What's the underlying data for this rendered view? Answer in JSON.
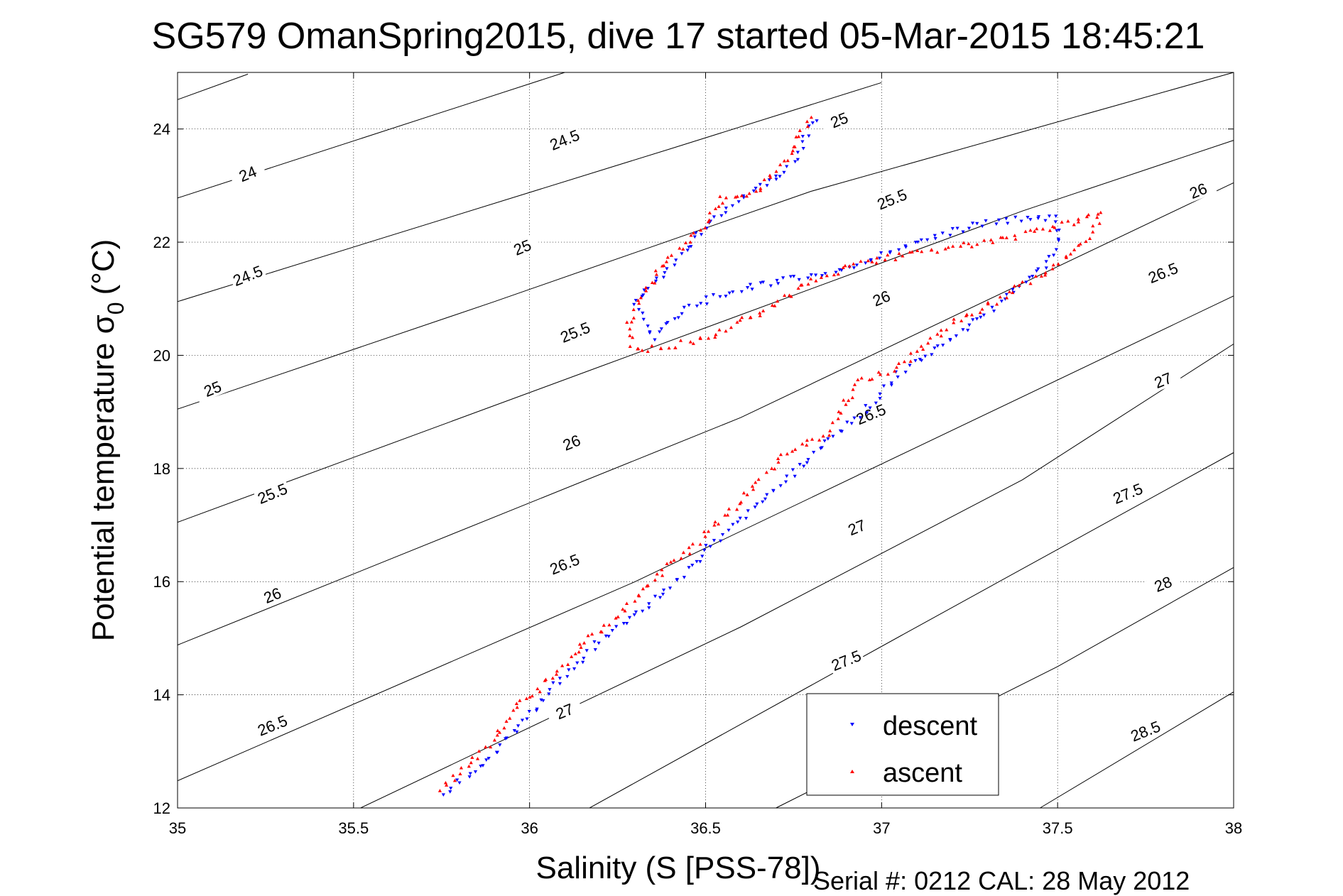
{
  "chart_data": {
    "type": "scatter",
    "title": "SG579 OmanSpring2015, dive 17 started 05-Mar-2015 18:45:21",
    "xlabel": "Salinity (S [PSS-78])",
    "ylabel_main": "Potential temperature σ",
    "ylabel_sub": "0",
    "ylabel_unit": "(°C)",
    "footer": "Serial #: 0212  CAL: 28 May 2012",
    "xlim": [
      35,
      38
    ],
    "ylim": [
      12,
      25
    ],
    "xticks": [
      {
        "v": 35,
        "label": "35"
      },
      {
        "v": 35.5,
        "label": "35.5"
      },
      {
        "v": 36,
        "label": "36"
      },
      {
        "v": 36.5,
        "label": "36.5"
      },
      {
        "v": 37,
        "label": "37"
      },
      {
        "v": 37.5,
        "label": "37.5"
      },
      {
        "v": 38,
        "label": "38"
      }
    ],
    "yticks": [
      {
        "v": 12,
        "label": "12"
      },
      {
        "v": 14,
        "label": "14"
      },
      {
        "v": 16,
        "label": "16"
      },
      {
        "v": 18,
        "label": "18"
      },
      {
        "v": 20,
        "label": "20"
      },
      {
        "v": 22,
        "label": "22"
      },
      {
        "v": 24,
        "label": "24"
      }
    ],
    "grid": true,
    "legend_position": "bottom-right",
    "contours": [
      {
        "points": [
          [
            35,
            24.52
          ],
          [
            35.2,
            24.97
          ]
        ],
        "labels": []
      },
      {
        "points": [
          [
            35,
            22.78
          ],
          [
            36.1,
            25.0
          ]
        ],
        "labels": [
          {
            "x": 35.2,
            "y": 23.2,
            "text": "24"
          }
        ]
      },
      {
        "points": [
          [
            35,
            20.95
          ],
          [
            36.4,
            23.65
          ],
          [
            37.0,
            24.82
          ]
        ],
        "labels": [
          {
            "x": 35.2,
            "y": 21.4,
            "text": "24.5"
          },
          {
            "x": 36.1,
            "y": 23.8,
            "text": "24.5"
          }
        ]
      },
      {
        "points": [
          [
            35,
            19.05
          ],
          [
            35.9,
            20.95
          ],
          [
            36.8,
            22.9
          ],
          [
            38,
            25.0
          ]
        ],
        "labels": [
          {
            "x": 35.1,
            "y": 19.4,
            "text": "25"
          },
          {
            "x": 35.98,
            "y": 21.9,
            "text": "25"
          },
          {
            "x": 36.88,
            "y": 24.15,
            "text": "25"
          }
        ]
      },
      {
        "points": [
          [
            35,
            17.05
          ],
          [
            36.2,
            19.8
          ],
          [
            37.4,
            22.55
          ],
          [
            38,
            23.8
          ]
        ],
        "labels": [
          {
            "x": 35.27,
            "y": 17.55,
            "text": "25.5"
          },
          {
            "x": 36.13,
            "y": 20.4,
            "text": "25.5"
          },
          {
            "x": 37.03,
            "y": 22.75,
            "text": "25.5"
          }
        ]
      },
      {
        "points": [
          [
            35,
            14.88
          ],
          [
            36.6,
            18.9
          ],
          [
            38,
            23.05
          ]
        ],
        "labels": [
          {
            "x": 35.27,
            "y": 15.75,
            "text": "26"
          },
          {
            "x": 36.12,
            "y": 18.45,
            "text": "26"
          },
          {
            "x": 37.0,
            "y": 21.0,
            "text": "26"
          },
          {
            "x": 37.9,
            "y": 22.9,
            "text": "26"
          }
        ]
      },
      {
        "points": [
          [
            35,
            12.48
          ],
          [
            36.3,
            16.0
          ],
          [
            38,
            21.05
          ]
        ],
        "labels": [
          {
            "x": 35.27,
            "y": 13.45,
            "text": "26.5"
          },
          {
            "x": 36.1,
            "y": 16.3,
            "text": "26.5"
          },
          {
            "x": 36.97,
            "y": 18.95,
            "text": "26.5"
          },
          {
            "x": 37.8,
            "y": 21.45,
            "text": "26.5"
          }
        ]
      },
      {
        "points": [
          [
            35.52,
            12.0
          ],
          [
            36.6,
            15.2
          ],
          [
            37.4,
            17.8
          ],
          [
            38,
            20.2
          ]
        ],
        "labels": [
          {
            "x": 36.1,
            "y": 13.7,
            "text": "27"
          },
          {
            "x": 36.93,
            "y": 16.95,
            "text": "27"
          },
          {
            "x": 37.8,
            "y": 19.55,
            "text": "27"
          }
        ]
      },
      {
        "points": [
          [
            36.17,
            12.0
          ],
          [
            37.1,
            15.2
          ],
          [
            38,
            18.28
          ]
        ],
        "labels": [
          {
            "x": 36.9,
            "y": 14.6,
            "text": "27.5"
          },
          {
            "x": 37.7,
            "y": 17.55,
            "text": "27.5"
          }
        ]
      },
      {
        "points": [
          [
            36.7,
            12.0
          ],
          [
            37.5,
            14.5
          ],
          [
            38,
            16.25
          ]
        ],
        "labels": [
          {
            "x": 37.8,
            "y": 15.95,
            "text": "28"
          }
        ]
      },
      {
        "points": [
          [
            37.45,
            12.0
          ],
          [
            38,
            14.05
          ]
        ],
        "labels": [
          {
            "x": 37.75,
            "y": 13.35,
            "text": "28.5"
          }
        ]
      }
    ],
    "series": [
      {
        "name": "descent",
        "color": "#0000ff",
        "marker": "triangle-down",
        "path": [
          [
            35.76,
            12.28
          ],
          [
            35.82,
            12.55
          ],
          [
            35.9,
            12.95
          ],
          [
            35.97,
            13.45
          ],
          [
            36.03,
            13.85
          ],
          [
            36.1,
            14.35
          ],
          [
            36.2,
            14.95
          ],
          [
            36.32,
            15.5
          ],
          [
            36.42,
            16.05
          ],
          [
            36.52,
            16.65
          ],
          [
            36.62,
            17.2
          ],
          [
            36.72,
            17.75
          ],
          [
            36.85,
            18.5
          ],
          [
            36.97,
            19.1
          ],
          [
            37.05,
            19.7
          ],
          [
            37.2,
            20.3
          ],
          [
            37.32,
            20.85
          ],
          [
            37.42,
            21.35
          ],
          [
            37.48,
            21.7
          ],
          [
            37.5,
            22.1
          ],
          [
            37.5,
            22.45
          ],
          [
            37.3,
            22.35
          ],
          [
            37.12,
            22.05
          ],
          [
            37.0,
            21.75
          ],
          [
            36.9,
            21.5
          ],
          [
            36.7,
            21.3
          ],
          [
            36.55,
            21.1
          ],
          [
            36.42,
            20.75
          ],
          [
            36.35,
            20.3
          ],
          [
            36.32,
            20.7
          ],
          [
            36.3,
            20.9
          ],
          [
            36.36,
            21.35
          ],
          [
            36.44,
            21.8
          ],
          [
            36.5,
            22.3
          ],
          [
            36.62,
            22.85
          ],
          [
            36.72,
            23.2
          ],
          [
            36.77,
            23.65
          ],
          [
            36.8,
            24.05
          ],
          [
            36.82,
            24.1
          ]
        ],
        "n": 300,
        "seed": 7
      },
      {
        "name": "ascent",
        "color": "#ff0000",
        "marker": "triangle-up",
        "path": [
          [
            35.75,
            12.3
          ],
          [
            35.82,
            12.75
          ],
          [
            35.88,
            13.05
          ],
          [
            35.95,
            13.7
          ],
          [
            36.05,
            14.25
          ],
          [
            36.15,
            14.9
          ],
          [
            36.25,
            15.35
          ],
          [
            36.35,
            16.05
          ],
          [
            36.45,
            16.55
          ],
          [
            36.55,
            17.1
          ],
          [
            36.65,
            17.8
          ],
          [
            36.75,
            18.35
          ],
          [
            36.85,
            18.65
          ],
          [
            36.93,
            19.5
          ],
          [
            37.05,
            19.8
          ],
          [
            37.2,
            20.55
          ],
          [
            37.35,
            21.05
          ],
          [
            37.5,
            21.6
          ],
          [
            37.6,
            22.15
          ],
          [
            37.62,
            22.5
          ],
          [
            37.45,
            22.2
          ],
          [
            37.25,
            21.95
          ],
          [
            37.1,
            21.8
          ],
          [
            36.95,
            21.65
          ],
          [
            36.8,
            21.3
          ],
          [
            36.65,
            20.75
          ],
          [
            36.5,
            20.3
          ],
          [
            36.4,
            20.15
          ],
          [
            36.3,
            20.1
          ],
          [
            36.28,
            20.5
          ],
          [
            36.3,
            20.85
          ],
          [
            36.35,
            21.3
          ],
          [
            36.4,
            21.75
          ],
          [
            36.45,
            21.95
          ],
          [
            36.5,
            22.35
          ],
          [
            36.55,
            22.8
          ],
          [
            36.65,
            22.85
          ],
          [
            36.7,
            23.3
          ],
          [
            36.75,
            23.6
          ],
          [
            36.78,
            24.05
          ],
          [
            36.8,
            24.2
          ]
        ],
        "n": 340,
        "seed": 13
      }
    ]
  }
}
